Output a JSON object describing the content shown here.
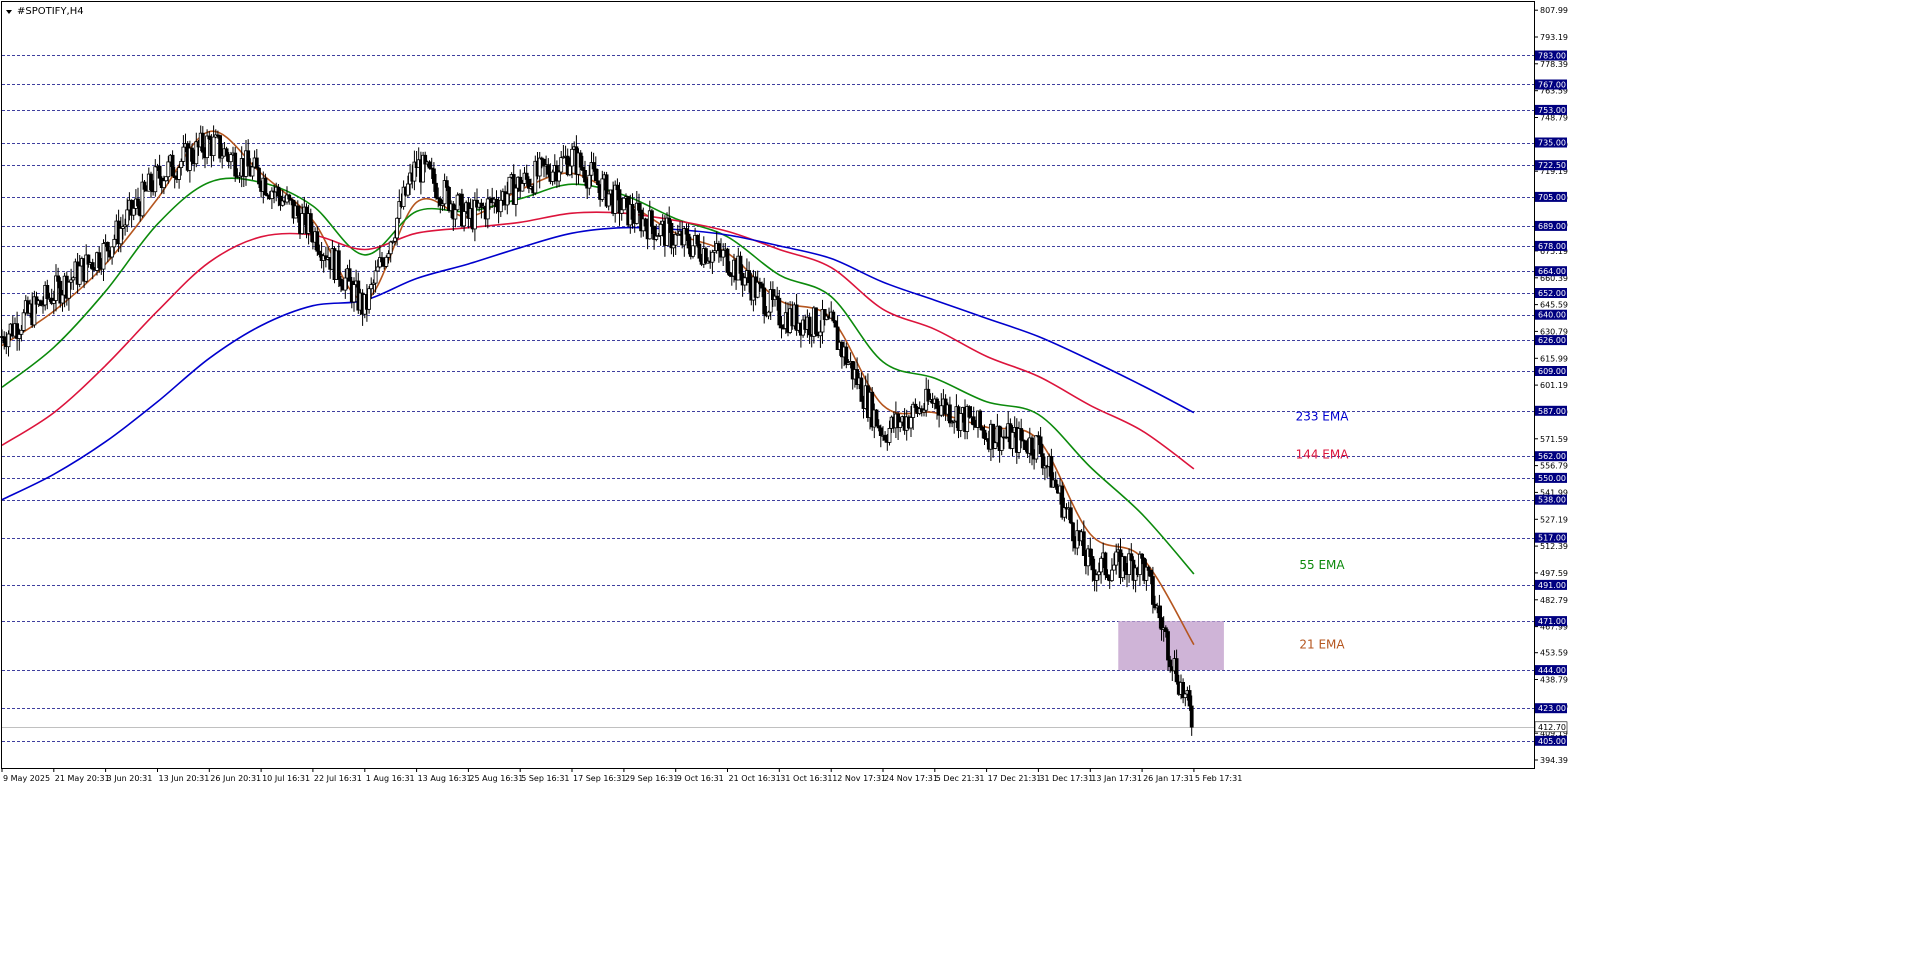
{
  "window": {
    "title": "#SPOTIFY,H4",
    "menu_icon": "triangle-down-icon"
  },
  "colors": {
    "background": "#ffffff",
    "bull_candle": "#ffffff",
    "bear_candle": "#000000",
    "candle_outline": "#000000",
    "price_label_bg": "#000080",
    "price_label_text": "#ffffff",
    "ema21": "#b5561f",
    "ema55": "#0c8a0c",
    "ema144": "#dc143c",
    "ema233": "#0000cd",
    "zone": "#c7a7d0"
  },
  "chart_data": {
    "type": "line",
    "chart_style": "candlestick",
    "x": [
      "9 May 2025",
      "21 May 20:31",
      "3 Jun 20:31",
      "13 Jun 20:31",
      "26 Jun 20:31",
      "10 Jul 16:31",
      "22 Jul 16:31",
      "1 Aug 16:31",
      "13 Aug 16:31",
      "25 Aug 16:31",
      "5 Sep 16:31",
      "17 Sep 16:31",
      "29 Sep 16:31",
      "9 Oct 16:31",
      "21 Oct 16:31",
      "31 Oct 16:31",
      "12 Nov 17:31",
      "24 Nov 17:31",
      "5 Dec 21:31",
      "17 Dec 21:31",
      "31 Dec 17:31",
      "13 Jan 17:31",
      "26 Jan 17:31",
      "5 Feb 17:31"
    ],
    "close": [
      628,
      652,
      676,
      716,
      735,
      716,
      686,
      643,
      723,
      693,
      712,
      727,
      698,
      682,
      671,
      640,
      633,
      575,
      593,
      575,
      568,
      500,
      503,
      412.7
    ],
    "series": [
      {
        "name": "21 EMA",
        "values": [
          623,
          642,
          668,
          704,
          741,
          718,
          692,
          648,
          702,
          694,
          709,
          718,
          703,
          685,
          674,
          648,
          638,
          590,
          586,
          578,
          571,
          519,
          506,
          458
        ]
      },
      {
        "name": "55 EMA",
        "values": [
          600,
          622,
          653,
          690,
          713,
          713,
          700,
          673,
          697,
          697,
          704,
          712,
          706,
          693,
          683,
          662,
          650,
          614,
          605,
          592,
          585,
          556,
          530,
          497
        ]
      },
      {
        "name": "144 EMA",
        "values": [
          568,
          586,
          612,
          642,
          669,
          683,
          684,
          676,
          685,
          688,
          691,
          696,
          696,
          692,
          686,
          676,
          666,
          643,
          632,
          617,
          606,
          590,
          576,
          555
        ]
      },
      {
        "name": "233 EMA",
        "values": [
          538,
          552,
          570,
          592,
          616,
          634,
          645,
          648,
          660,
          668,
          677,
          685,
          688,
          687,
          684,
          678,
          671,
          658,
          648,
          638,
          628,
          615,
          601,
          586
        ]
      }
    ],
    "horizontal_levels": [
      783.0,
      767.0,
      753.0,
      735.0,
      722.5,
      705.0,
      689.0,
      678.0,
      664.0,
      652.0,
      640.0,
      626.0,
      609.0,
      587.0,
      562.0,
      550.0,
      538.0,
      517.0,
      491.0,
      471.0,
      444.0,
      423.0,
      405.0
    ],
    "current_price": 412.7,
    "current_price_label": "412.70",
    "level_labels": [
      "783.00",
      "767.00",
      "753.00",
      "735.00",
      "722.50",
      "705.00",
      "689.00",
      "678.00",
      "664.00",
      "652.00",
      "640.00",
      "626.00",
      "609.00",
      "587.00",
      "562.00",
      "550.00",
      "538.00",
      "517.00",
      "491.00",
      "471.00",
      "444.00",
      "423.00",
      "405.00"
    ],
    "y_ticks": [
      "807.99",
      "793.19",
      "778.39",
      "763.59",
      "748.79",
      "733.99",
      "719.19",
      "704.39",
      "689.59",
      "675.19",
      "660.39",
      "645.59",
      "630.79",
      "615.99",
      "601.19",
      "586.39",
      "571.59",
      "556.79",
      "541.99",
      "527.19",
      "512.39",
      "497.59",
      "482.79",
      "467.99",
      "453.59",
      "438.79",
      "423.99",
      "409.19",
      "394.39"
    ],
    "ylim": [
      390.0,
      811.4
    ],
    "zone": {
      "from_label": "13 Jan 17:31",
      "to_label": "5 Feb 17:31",
      "price_low": 444.0,
      "price_high": 471.0
    },
    "annotations": [
      {
        "text": "233 EMA",
        "price": 584,
        "color": "#0000cd"
      },
      {
        "text": "144 EMA",
        "price": 563,
        "color": "#dc143c"
      },
      {
        "text": "55 EMA",
        "price": 502,
        "color": "#0c8a0c"
      },
      {
        "text": "21 EMA",
        "price": 458,
        "color": "#b5561f"
      }
    ],
    "grid": false,
    "title": "#SPOTIFY,H4"
  }
}
